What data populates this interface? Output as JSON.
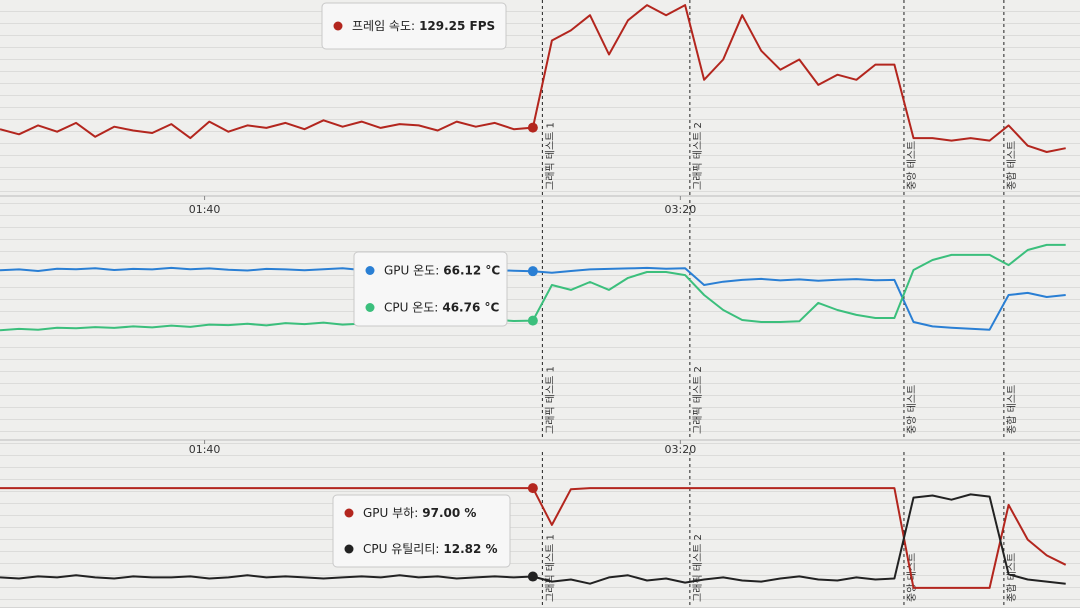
{
  "chart_data": [
    {
      "type": "line",
      "x": [
        57,
        61,
        65,
        69,
        73,
        77,
        81,
        85,
        89,
        93,
        97,
        101,
        105,
        109,
        113,
        117,
        121,
        125,
        129,
        133,
        137,
        141,
        145,
        149,
        153,
        157,
        161,
        165,
        169,
        173,
        177,
        181,
        185,
        189,
        193,
        197,
        201,
        205,
        209,
        213,
        217,
        221,
        225,
        229,
        233,
        237,
        241,
        245,
        249,
        253,
        257,
        261,
        265,
        269,
        273,
        277,
        281
      ],
      "xlim": [
        57,
        284
      ],
      "ylim": [
        80,
        230
      ],
      "xticks": [
        {
          "value": 100,
          "label": "01:40"
        },
        {
          "value": 200,
          "label": "03:20"
        }
      ],
      "series": [
        {
          "color": "#b3261e",
          "values": [
            128,
            124,
            131,
            126,
            133,
            122,
            130,
            127,
            125,
            132,
            121,
            134,
            126,
            131,
            129,
            133,
            128,
            135,
            130,
            134,
            129,
            132,
            131,
            127,
            134,
            130,
            133,
            128,
            129.25,
            198,
            206,
            218,
            187,
            214,
            226,
            218,
            226,
            167,
            183,
            218,
            190,
            175,
            183,
            163,
            171,
            167,
            179,
            179,
            121,
            121,
            119,
            121,
            119,
            131,
            115,
            110,
            113
          ]
        }
      ],
      "markers": [
        {
          "x": 171,
          "label": "그래픽 테스트 1"
        },
        {
          "x": 202,
          "label": "그래픽 테스트 2"
        },
        {
          "x": 247,
          "label": "중앙 테스트"
        },
        {
          "x": 268,
          "label": "종합 테스트"
        }
      ],
      "tooltip": {
        "index": 28,
        "items": [
          {
            "series": 0,
            "label": "프레임 속도:",
            "value": "129.25 FPS"
          }
        ]
      }
    },
    {
      "type": "line",
      "x": [
        57,
        61,
        65,
        69,
        73,
        77,
        81,
        85,
        89,
        93,
        97,
        101,
        105,
        109,
        113,
        117,
        121,
        125,
        129,
        133,
        137,
        141,
        145,
        149,
        153,
        157,
        161,
        165,
        169,
        173,
        177,
        181,
        185,
        189,
        193,
        197,
        201,
        205,
        209,
        213,
        217,
        221,
        225,
        229,
        233,
        237,
        241,
        245,
        249,
        253,
        257,
        261,
        265,
        269,
        273,
        277,
        281
      ],
      "xlim": [
        57,
        284
      ],
      "ylim": [
        0,
        94
      ],
      "xticks": [
        {
          "value": 100,
          "label": "01:40"
        },
        {
          "value": 200,
          "label": "03:20"
        }
      ],
      "series": [
        {
          "color": "#2a7fd4",
          "values": [
            66.5,
            66.8,
            66.2,
            67.1,
            66.9,
            67.3,
            66.6,
            67.0,
            66.8,
            67.4,
            66.9,
            67.2,
            66.7,
            66.4,
            67.0,
            66.8,
            66.5,
            66.9,
            67.3,
            66.6,
            66.8,
            67.1,
            66.4,
            66.9,
            66.7,
            67.0,
            66.5,
            66.3,
            66.12,
            65.5,
            66.2,
            66.8,
            67.0,
            67.2,
            67.4,
            67.1,
            67.3,
            60.7,
            62.0,
            62.7,
            63.1,
            62.5,
            62.9,
            62.4,
            62.8,
            63.0,
            62.6,
            62.7,
            46.2,
            44.5,
            44.0,
            43.6,
            43.2,
            56.8,
            57.6,
            56.0,
            56.8
          ]
        },
        {
          "color": "#3bbf7c",
          "values": [
            43.0,
            43.5,
            43.2,
            44.0,
            43.8,
            44.2,
            43.9,
            44.5,
            44.1,
            44.8,
            44.3,
            45.2,
            45.0,
            45.5,
            44.9,
            45.8,
            45.4,
            46.0,
            45.2,
            45.6,
            46.3,
            45.9,
            46.5,
            46.8,
            46.2,
            46.9,
            47.1,
            46.6,
            46.76,
            60.7,
            58.8,
            61.9,
            58.8,
            63.5,
            65.8,
            65.8,
            64.6,
            56.8,
            50.9,
            47.0,
            46.2,
            46.2,
            46.5,
            53.7,
            50.9,
            49.0,
            47.8,
            47.8,
            66.6,
            70.5,
            72.5,
            72.5,
            72.5,
            68.5,
            74.4,
            76.4,
            76.4
          ]
        }
      ],
      "markers": [
        {
          "x": 171,
          "label": "그래픽 테스트 1"
        },
        {
          "x": 202,
          "label": "그래픽 테스트 2"
        },
        {
          "x": 247,
          "label": "중앙 테스트"
        },
        {
          "x": 268,
          "label": "종합 테스트"
        }
      ],
      "tooltip": {
        "index": 28,
        "items": [
          {
            "series": 0,
            "label": "GPU 온도:",
            "value": "66.12 °C"
          },
          {
            "series": 1,
            "label": "CPU 온도:",
            "value": "46.76 °C"
          }
        ]
      }
    },
    {
      "type": "line",
      "x": [
        57,
        61,
        65,
        69,
        73,
        77,
        81,
        85,
        89,
        93,
        97,
        101,
        105,
        109,
        113,
        117,
        121,
        125,
        129,
        133,
        137,
        141,
        145,
        149,
        153,
        157,
        161,
        165,
        169,
        173,
        177,
        181,
        185,
        189,
        193,
        197,
        201,
        205,
        209,
        213,
        217,
        221,
        225,
        229,
        233,
        237,
        241,
        245,
        249,
        253,
        257,
        261,
        265,
        269,
        273,
        277,
        281
      ],
      "xlim": [
        57,
        284
      ],
      "ylim": [
        0,
        100
      ],
      "series": [
        {
          "color": "#b3261e",
          "values": [
            97,
            97,
            97,
            97,
            97,
            97,
            97,
            97,
            97,
            97,
            97,
            97,
            97,
            97,
            97,
            97,
            97,
            97,
            97,
            97,
            97,
            97,
            97,
            97,
            97,
            97,
            97,
            97,
            97,
            62,
            96,
            97,
            97,
            97,
            97,
            97,
            97,
            97,
            97,
            97,
            97,
            97,
            97,
            97,
            97,
            97,
            97,
            97,
            2,
            2,
            2,
            2,
            2,
            81,
            48,
            33,
            24
          ]
        },
        {
          "color": "#222222",
          "values": [
            12,
            11,
            13,
            12,
            14,
            12,
            11,
            13,
            12,
            12,
            13,
            11,
            12,
            14,
            12,
            13,
            12,
            11,
            12,
            13,
            12,
            14,
            12,
            13,
            11,
            12,
            13,
            12,
            12.82,
            8,
            10,
            6,
            12,
            14,
            9,
            11,
            7,
            10,
            12,
            9,
            8,
            11,
            13,
            10,
            9,
            12,
            10,
            11,
            88,
            90,
            86,
            91,
            89,
            15,
            10,
            8,
            6
          ]
        }
      ],
      "markers": [
        {
          "x": 171,
          "label": "그래픽 테스트 1"
        },
        {
          "x": 202,
          "label": "그래픽 테스트 2"
        },
        {
          "x": 247,
          "label": "중앙 테스트"
        },
        {
          "x": 268,
          "label": "종합 테스트"
        }
      ],
      "tooltip": {
        "index": 28,
        "items": [
          {
            "series": 0,
            "label": "GPU 부하:",
            "value": "97.00 %"
          },
          {
            "series": 1,
            "label": "CPU 유틸리티:",
            "value": "12.82 %"
          }
        ]
      }
    }
  ]
}
